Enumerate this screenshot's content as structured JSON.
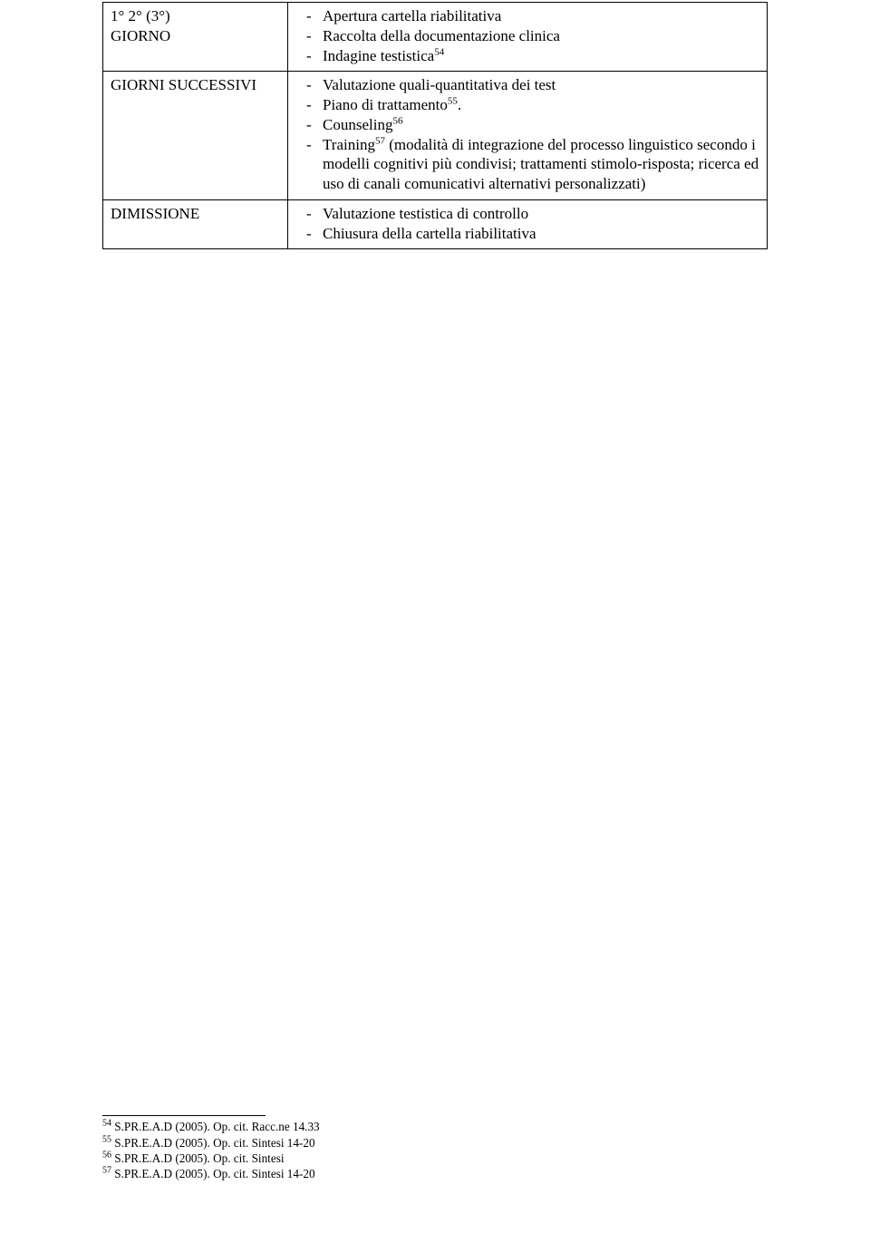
{
  "table": {
    "rows": [
      {
        "left": "1° 2° (3°)\nGIORNO",
        "items": [
          {
            "text": "Apertura cartella riabilitativa"
          },
          {
            "text": "Raccolta della documentazione clinica"
          },
          {
            "text": "Indagine testistica",
            "sup": "54"
          }
        ]
      },
      {
        "left": "GIORNI SUCCESSIVI",
        "items": [
          {
            "text": "Valutazione quali-quantitativa dei test"
          },
          {
            "text": "Piano di trattamento",
            "sup": "55",
            "after": "."
          },
          {
            "text": "Counseling",
            "sup": "56"
          },
          {
            "text_pre": "Training",
            "sup": "57",
            "text_post": " (modalità di integrazione del processo linguistico secondo i modelli cognitivi più condivisi; trattamenti stimolo-risposta; ricerca ed uso di canali comunicativi alternativi personalizzati)"
          }
        ]
      },
      {
        "left": "DIMISSIONE",
        "items": [
          {
            "text": "Valutazione testistica di controllo"
          },
          {
            "text": "Chiusura della cartella riabilitativa"
          }
        ]
      }
    ]
  },
  "footnotes": [
    {
      "num": "54",
      "text": " S.PR.E.A.D (2005). Op. cit. Racc.ne 14.33"
    },
    {
      "num": "55",
      "text": " S.PR.E.A.D (2005). Op. cit. Sintesi 14-20"
    },
    {
      "num": "56",
      "text": " S.PR.E.A.D (2005). Op. cit. Sintesi"
    },
    {
      "num": "57",
      "text": " S.PR.E.A.D (2005). Op. cit. Sintesi 14-20"
    }
  ]
}
